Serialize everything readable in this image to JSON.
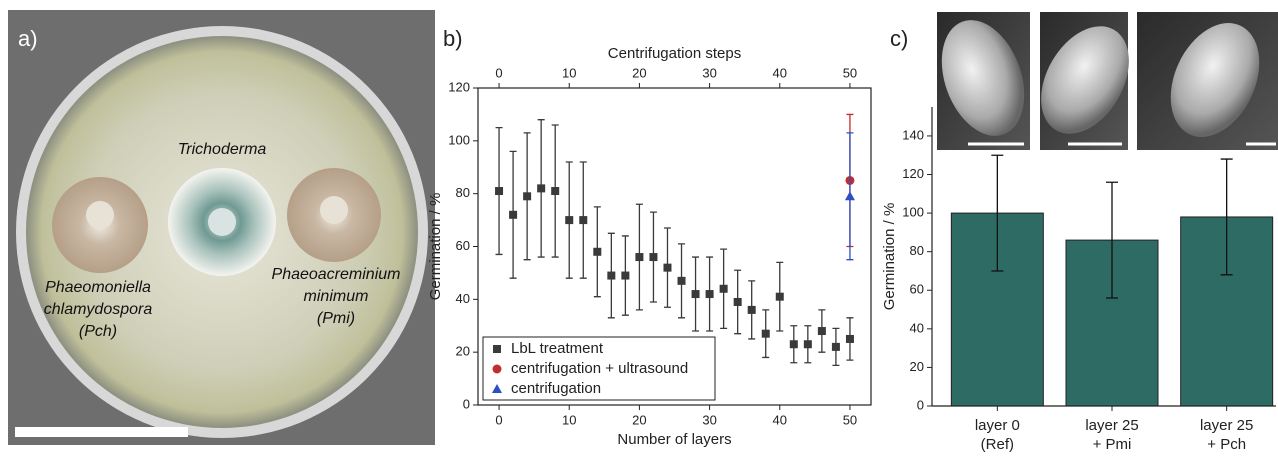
{
  "panel_labels": [
    "a)",
    "b)",
    "c)"
  ],
  "photo": {
    "labels": [
      [
        "Trichoderma"
      ],
      [
        "Phaeomoniella",
        "chlamydospora",
        "(Pch)"
      ],
      [
        "Phaeoacreminium",
        "minimum",
        "(Pmi)"
      ]
    ]
  },
  "chart_data": [
    {
      "type": "scatter",
      "xlabel": "Number of layers",
      "ylabel": "Germination / %",
      "x2label": "Centrifugation steps",
      "xlim": [
        -3,
        53
      ],
      "xticks": [
        0,
        10,
        20,
        30,
        40,
        50
      ],
      "x2lim": [
        -3,
        53
      ],
      "x2ticks": [
        0,
        10,
        20,
        30,
        40,
        50
      ],
      "ylim": [
        0,
        120
      ],
      "yticks": [
        0,
        20,
        40,
        60,
        80,
        100,
        120
      ],
      "legend": "lower left",
      "series": [
        {
          "name": "LbL treatment",
          "color": "#3a3a3a",
          "marker": "square",
          "x": [
            0,
            2,
            4,
            6,
            8,
            10,
            12,
            14,
            16,
            18,
            20,
            22,
            24,
            26,
            28,
            30,
            32,
            34,
            36,
            38,
            40,
            42,
            44,
            46,
            48,
            50
          ],
          "values": [
            81,
            72,
            79,
            82,
            81,
            70,
            70,
            58,
            49,
            49,
            56,
            56,
            52,
            47,
            42,
            42,
            44,
            39,
            36,
            27,
            41,
            23,
            23,
            28,
            22,
            25
          ],
          "errors": [
            24,
            24,
            24,
            26,
            25,
            22,
            22,
            17,
            16,
            15,
            20,
            17,
            15,
            14,
            14,
            14,
            15,
            12,
            11,
            9,
            13,
            7,
            7,
            8,
            7,
            8
          ]
        },
        {
          "name": "centrifugation + ultrasound",
          "color": "#c0302b",
          "marker": "circle",
          "x": [
            50
          ],
          "values": [
            85
          ],
          "errors": [
            25
          ]
        },
        {
          "name": "centrifugation",
          "color": "#2b4fc4",
          "marker": "triangle",
          "x": [
            50
          ],
          "values": [
            79
          ],
          "errors": [
            24
          ]
        }
      ]
    },
    {
      "type": "bar",
      "ylabel": "Germination / %",
      "categories": [
        [
          "layer 0",
          "(Ref)"
        ],
        [
          "layer 25",
          "+ Pmi"
        ],
        [
          "layer 25",
          "+ Pch"
        ]
      ],
      "values": [
        100,
        86,
        98
      ],
      "errors": [
        30,
        30,
        30
      ],
      "color": "#2e6b65",
      "ylim": [
        0,
        155
      ],
      "yticks": [
        0,
        20,
        40,
        60,
        80,
        100,
        120,
        140
      ]
    }
  ]
}
